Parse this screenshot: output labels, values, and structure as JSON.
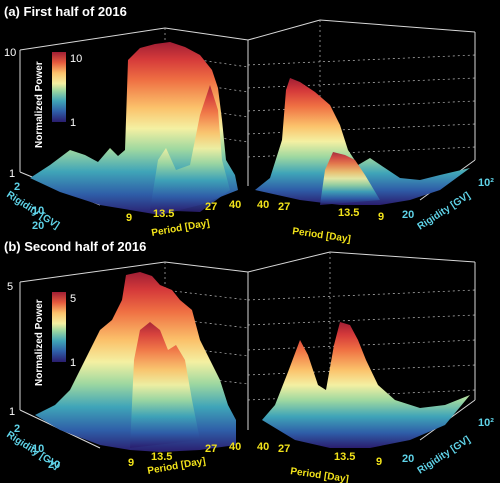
{
  "chart_data": [
    {
      "type": "surface",
      "title": "(a) First half of 2016",
      "zlabel": "Normalized Power",
      "z_ticks": [
        "1",
        "10"
      ],
      "colorbar_ticks": [
        "10",
        "1"
      ],
      "rigidity_label": "Rigidity [GV]",
      "period_label": "Period [Day]",
      "rigidity_ticks_left": [
        "2",
        "10",
        "20"
      ],
      "period_ticks_left": [
        "9",
        "13.5",
        "27",
        "40"
      ],
      "period_ticks_right": [
        "40",
        "27",
        "13.5",
        "9"
      ],
      "rigidity_ticks_right": [
        "20",
        "10²"
      ],
      "periods": [
        9,
        13.5,
        27,
        40
      ],
      "peak_power": 10
    },
    {
      "type": "surface",
      "title": "(b) Second half of 2016",
      "zlabel": "Normalized Power",
      "z_ticks": [
        "1",
        "5"
      ],
      "colorbar_ticks": [
        "5",
        "1"
      ],
      "rigidity_label": "Rigidity [GV]",
      "period_label": "Period [Day]",
      "rigidity_ticks_left": [
        "2",
        "10",
        "20"
      ],
      "period_ticks_left": [
        "9",
        "13.5",
        "27",
        "40"
      ],
      "period_ticks_right": [
        "40",
        "27",
        "13.5",
        "9"
      ],
      "rigidity_ticks_right": [
        "20",
        "10²"
      ],
      "periods": [
        9,
        13.5,
        27,
        40
      ],
      "peak_power": 5
    }
  ]
}
